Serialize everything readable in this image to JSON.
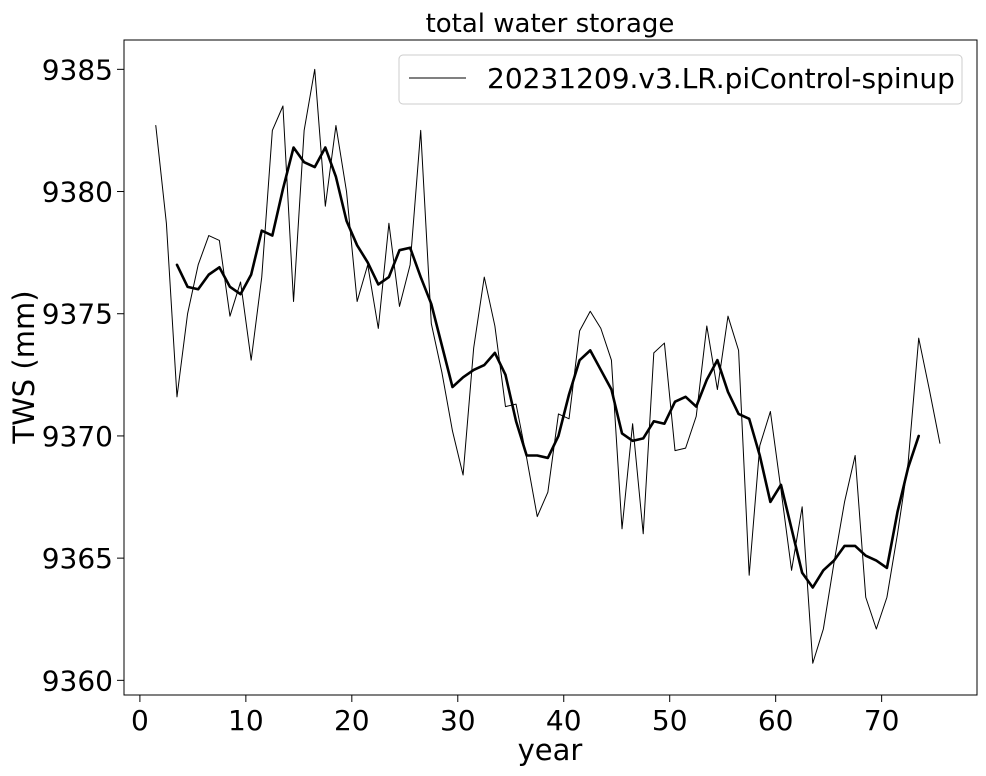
{
  "chart_data": {
    "type": "line",
    "title": "total water storage",
    "xlabel": "year",
    "ylabel": "TWS (mm)",
    "xlim": [
      -1.5,
      79
    ],
    "ylim": [
      9359.4,
      9386.2
    ],
    "xticks": [
      0,
      10,
      20,
      30,
      40,
      50,
      60,
      70
    ],
    "xtick_labels": [
      "0",
      "10",
      "20",
      "30",
      "40",
      "50",
      "60",
      "70"
    ],
    "yticks": [
      9360,
      9365,
      9370,
      9375,
      9380,
      9385
    ],
    "ytick_labels": [
      "9360",
      "9365",
      "9370",
      "9375",
      "9380",
      "9385"
    ],
    "grid": false,
    "legend": {
      "position": "top-right",
      "entries": [
        "20231209.v3.LR.piControl-spinup"
      ]
    },
    "series": [
      {
        "name": "20231209.v3.LR.piControl-spinup",
        "color": "#000000",
        "x": [
          1.5,
          2.5,
          3.5,
          4.5,
          5.5,
          6.5,
          7.5,
          8.5,
          9.5,
          10.5,
          11.5,
          12.5,
          13.5,
          14.5,
          15.5,
          16.5,
          17.5,
          18.5,
          19.5,
          20.5,
          21.5,
          22.5,
          23.5,
          24.5,
          25.5,
          26.5,
          27.5,
          28.5,
          29.5,
          30.5,
          31.5,
          32.5,
          33.5,
          34.5,
          35.5,
          36.5,
          37.5,
          38.5,
          39.5,
          40.5,
          41.5,
          42.5,
          43.5,
          44.5,
          45.5,
          46.5,
          47.5,
          48.5,
          49.5,
          50.5,
          51.5,
          52.5,
          53.5,
          54.5,
          55.5,
          56.5,
          57.5,
          58.5,
          59.5,
          60.5,
          61.5,
          62.5,
          63.5,
          64.5,
          65.5,
          66.5,
          67.5,
          68.5,
          69.5,
          70.5,
          71.5,
          72.5,
          73.5,
          74.5,
          75.5
        ],
        "values": [
          9382.7,
          9378.7,
          9371.6,
          9375.0,
          9377.0,
          9378.2,
          9378.0,
          9374.9,
          9376.3,
          9373.1,
          9376.5,
          9382.5,
          9383.5,
          9375.5,
          9382.5,
          9385.0,
          9379.4,
          9382.7,
          9380.0,
          9375.5,
          9377.0,
          9374.4,
          9378.7,
          9375.3,
          9377.0,
          9382.5,
          9374.6,
          9372.6,
          9370.2,
          9368.4,
          9373.6,
          9376.5,
          9374.5,
          9371.2,
          9371.3,
          9369.1,
          9366.7,
          9367.7,
          9370.9,
          9370.7,
          9374.3,
          9375.1,
          9374.4,
          9373.1,
          9366.2,
          9370.5,
          9366.0,
          9373.4,
          9373.8,
          9369.4,
          9369.5,
          9370.8,
          9374.5,
          9371.9,
          9374.9,
          9373.5,
          9364.3,
          9369.6,
          9371.0,
          9367.8,
          9364.5,
          9367.1,
          9360.7,
          9362.1,
          9364.8,
          9367.3,
          9369.2,
          9363.4,
          9362.1,
          9363.4,
          9366.0,
          9368.9,
          9374.0,
          9371.9,
          9369.7
        ],
        "linewidth": "thin"
      },
      {
        "name": "",
        "color": "#000000",
        "x": [
          3.5,
          4.5,
          5.5,
          6.5,
          7.5,
          8.5,
          9.5,
          10.5,
          11.5,
          12.5,
          13.5,
          14.5,
          15.5,
          16.5,
          17.5,
          18.5,
          19.5,
          20.5,
          21.5,
          22.5,
          23.5,
          24.5,
          25.5,
          26.5,
          27.5,
          28.5,
          29.5,
          30.5,
          31.5,
          32.5,
          33.5,
          34.5,
          35.5,
          36.5,
          37.5,
          38.5,
          39.5,
          40.5,
          41.5,
          42.5,
          43.5,
          44.5,
          45.5,
          46.5,
          47.5,
          48.5,
          49.5,
          50.5,
          51.5,
          52.5,
          53.5,
          54.5,
          55.5,
          56.5,
          57.5,
          58.5,
          59.5,
          60.5,
          61.5,
          62.5,
          63.5,
          64.5,
          65.5,
          66.5,
          67.5,
          68.5,
          69.5,
          70.5,
          71.5,
          72.5,
          73.5
        ],
        "values": [
          9377.0,
          9376.1,
          9376.0,
          9376.6,
          9376.9,
          9376.1,
          9375.8,
          9376.6,
          9378.4,
          9378.2,
          9380.1,
          9381.8,
          9381.2,
          9381.0,
          9381.8,
          9380.6,
          9378.8,
          9377.8,
          9377.1,
          9376.2,
          9376.5,
          9377.6,
          9377.7,
          9376.5,
          9375.4,
          9373.7,
          9372.0,
          9372.4,
          9372.7,
          9372.9,
          9373.4,
          9372.5,
          9370.6,
          9369.2,
          9369.2,
          9369.1,
          9370.0,
          9371.7,
          9373.1,
          9373.5,
          9372.7,
          9371.9,
          9370.1,
          9369.8,
          9369.9,
          9370.6,
          9370.5,
          9371.4,
          9371.6,
          9371.2,
          9372.3,
          9373.1,
          9371.8,
          9370.9,
          9370.7,
          9369.2,
          9367.3,
          9368.0,
          9366.2,
          9364.4,
          9363.8,
          9364.5,
          9364.9,
          9365.5,
          9365.5,
          9365.1,
          9364.9,
          9364.6,
          9366.9,
          9368.7,
          9370.0
        ],
        "linewidth": "thick"
      }
    ]
  }
}
